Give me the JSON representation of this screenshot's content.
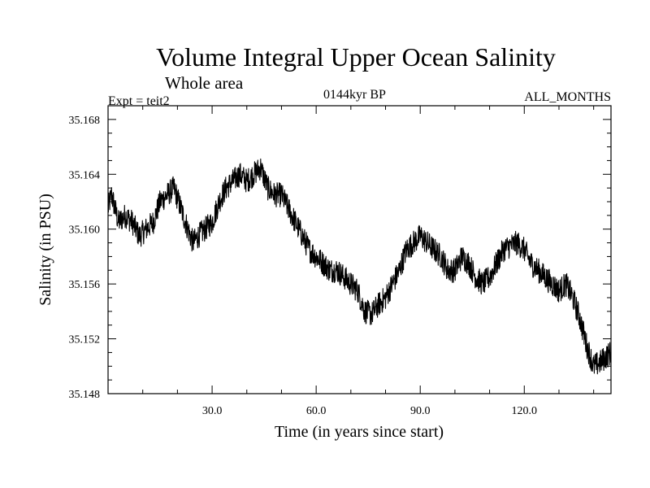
{
  "title": "Volume Integral Upper Ocean Salinity",
  "subtitle": "Whole area",
  "experiment": "Expt = teit2",
  "period": "0144kyr BP",
  "months": "ALL_MONTHS",
  "chart_data": {
    "type": "line",
    "title": "Volume Integral Upper Ocean Salinity",
    "subtitle": "Whole area",
    "xlabel": "Time (in years since start)",
    "ylabel": "Salinity (in PSU)",
    "xlim": [
      0,
      145
    ],
    "ylim": [
      35.148,
      35.169
    ],
    "xticks": [
      30,
      60,
      90,
      120
    ],
    "xtick_labels": [
      "30.0",
      "60.0",
      "90.0",
      "120.0"
    ],
    "yticks": [
      35.148,
      35.152,
      35.156,
      35.16,
      35.164,
      35.168
    ],
    "ytick_labels": [
      "35.148",
      "35.152",
      "35.156",
      "35.160",
      "35.164",
      "35.168"
    ],
    "grid": false,
    "noise_amplitude": 0.0009,
    "series": [
      {
        "name": "Salinity",
        "x": [
          0,
          1,
          3,
          5,
          7,
          9,
          11,
          13,
          15,
          17,
          19,
          21,
          23,
          24.5,
          26,
          28,
          30,
          32,
          34,
          36,
          38,
          40,
          42,
          44,
          46,
          48,
          50,
          52,
          54,
          56,
          58,
          60,
          62,
          64,
          66,
          68,
          70,
          72,
          74,
          76,
          78,
          80,
          82,
          84,
          86,
          88,
          90,
          92,
          94,
          96,
          98,
          100,
          102,
          104,
          106,
          108,
          110,
          112,
          114,
          116,
          118,
          120,
          122,
          124,
          126,
          128,
          130,
          132,
          134,
          136,
          138,
          140,
          142,
          144,
          145
        ],
        "y": [
          35.1615,
          35.1625,
          35.1605,
          35.161,
          35.1605,
          35.1595,
          35.16,
          35.1605,
          35.162,
          35.1625,
          35.163,
          35.1615,
          35.16,
          35.159,
          35.1595,
          35.16,
          35.1605,
          35.162,
          35.163,
          35.1635,
          35.164,
          35.1635,
          35.164,
          35.1645,
          35.163,
          35.1625,
          35.1625,
          35.1615,
          35.1605,
          35.1595,
          35.1585,
          35.158,
          35.1575,
          35.157,
          35.157,
          35.1565,
          35.156,
          35.1555,
          35.154,
          35.1538,
          35.1545,
          35.155,
          35.156,
          35.157,
          35.1585,
          35.159,
          35.1595,
          35.159,
          35.1585,
          35.158,
          35.157,
          35.157,
          35.158,
          35.1575,
          35.1565,
          35.156,
          35.1565,
          35.1575,
          35.1585,
          35.1588,
          35.159,
          35.1585,
          35.1575,
          35.157,
          35.1565,
          35.156,
          35.1555,
          35.156,
          35.155,
          35.1535,
          35.1515,
          35.15,
          35.1503,
          35.1508,
          35.151
        ]
      }
    ]
  }
}
